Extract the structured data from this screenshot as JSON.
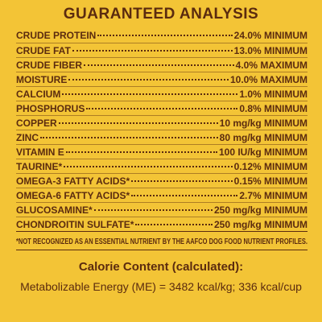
{
  "title": "GUARANTEED ANALYSIS",
  "rows": [
    {
      "name": "CRUDE PROTEIN",
      "value": "24.0% MINIMUM"
    },
    {
      "name": "CRUDE FAT",
      "value": "13.0% MINIMUM"
    },
    {
      "name": "CRUDE FIBER",
      "value": "4.0% MAXIMUM"
    },
    {
      "name": "MOISTURE",
      "value": "10.0% MAXIMUM"
    },
    {
      "name": "CALCIUM",
      "value": "1.0% MINIMUM"
    },
    {
      "name": "PHOSPHORUS",
      "value": "0.8% MINIMUM"
    },
    {
      "name": "COPPER",
      "value": "10 mg/kg MINIMUM"
    },
    {
      "name": "ZINC",
      "value": "80 mg/kg MINIMUM"
    },
    {
      "name": "VITAMIN E",
      "value": "100 IU/kg MINIMUM"
    },
    {
      "name": "TAURINE*",
      "value": "0.12% MINIMUM"
    },
    {
      "name": "OMEGA-3 FATTY ACIDS*",
      "value": "0.15% MINIMUM"
    },
    {
      "name": "OMEGA-6 FATTY ACIDS*",
      "value": "2.7% MINIMUM"
    },
    {
      "name": "GLUCOSAMINE*",
      "value": "250 mg/kg MINIMUM"
    },
    {
      "name": "CHONDROITIN SULFATE*",
      "value": "250 mg/kg MINIMUM"
    }
  ],
  "footnote": "*NOT RECOGNIZED AS AN ESSENTIAL NUTRIENT BY THE AAFCO DOG FOOD NUTRIENT PROFILES.",
  "calorie": {
    "title": "Calorie Content (calculated):",
    "text": "Metabolizable Energy (ME) = 3482 kcal/kg; 336 kcal/cup"
  }
}
